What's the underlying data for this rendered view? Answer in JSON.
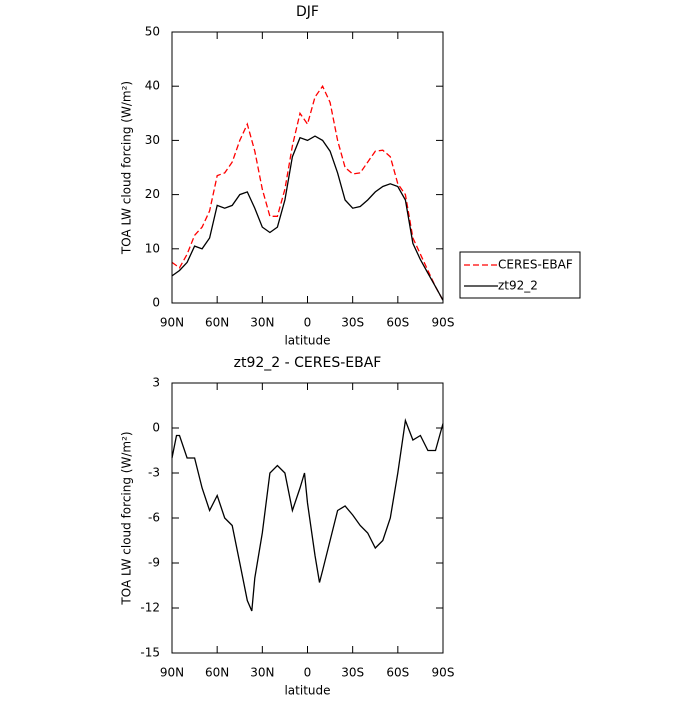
{
  "chart_data": [
    {
      "type": "line",
      "title": "DJF",
      "xlabel": "latitude",
      "ylabel": "TOA LW cloud forcing (W/m²)",
      "x": [
        90,
        85,
        80,
        75,
        70,
        65,
        60,
        55,
        50,
        45,
        40,
        35,
        30,
        25,
        20,
        15,
        10,
        5,
        0,
        -5,
        -10,
        -15,
        -20,
        -25,
        -30,
        -35,
        -40,
        -45,
        -50,
        -55,
        -60,
        -65,
        -70,
        -75,
        -80,
        -85,
        -90
      ],
      "series": [
        {
          "name": "CERES-EBAF",
          "color": "#ff0000",
          "dash": true,
          "values": [
            7.5,
            6.5,
            9,
            12.5,
            14,
            17,
            23.5,
            24,
            26,
            30,
            33,
            28,
            21,
            16,
            16,
            21,
            29,
            35,
            33,
            38,
            40,
            37,
            30,
            25,
            23.8,
            24,
            26,
            28,
            28.2,
            27,
            22,
            20,
            12,
            9,
            6,
            3,
            0.5
          ]
        },
        {
          "name": "zt92_2",
          "color": "#000000",
          "dash": false,
          "values": [
            5,
            6,
            7.5,
            10.5,
            10,
            12,
            18,
            17.5,
            18,
            20,
            20.5,
            17.5,
            14,
            13,
            14,
            19,
            27,
            30.5,
            30,
            30.8,
            30,
            28,
            24,
            19,
            17.5,
            17.8,
            19,
            20.5,
            21.5,
            22,
            21.5,
            19,
            11,
            8,
            5.5,
            3,
            0.5
          ]
        }
      ],
      "xlim": [
        90,
        -90
      ],
      "xticks": [
        {
          "value": 90,
          "label": "90N"
        },
        {
          "value": 60,
          "label": "60N"
        },
        {
          "value": 30,
          "label": "30N"
        },
        0,
        {
          "value": -30,
          "label": "30S"
        },
        {
          "value": -60,
          "label": "60S"
        },
        {
          "value": -90,
          "label": "90S"
        }
      ],
      "ylim": [
        0,
        50
      ],
      "yticks": [
        0,
        10,
        20,
        30,
        40,
        50
      ],
      "legend": "right"
    },
    {
      "type": "line",
      "title": "zt92_2 - CERES-EBAF",
      "xlabel": "latitude",
      "ylabel": "TOA LW cloud forcing (W/m²)",
      "x": [
        90,
        87,
        85,
        80,
        75,
        70,
        65,
        60,
        55,
        50,
        45,
        40,
        37,
        35,
        30,
        25,
        20,
        15,
        10,
        5,
        2,
        0,
        -5,
        -8,
        -10,
        -15,
        -20,
        -25,
        -30,
        -35,
        -40,
        -45,
        -50,
        -55,
        -60,
        -65,
        -70,
        -75,
        -80,
        -85,
        -90
      ],
      "series": [
        {
          "name": "zt92_2 - CERES-EBAF",
          "color": "#000000",
          "dash": false,
          "values": [
            -2,
            -0.5,
            -0.5,
            -2,
            -2,
            -4,
            -5.5,
            -4.5,
            -6,
            -6.5,
            -9,
            -11.5,
            -12.2,
            -10,
            -7,
            -3,
            -2.5,
            -3,
            -5.5,
            -4,
            -3,
            -5,
            -8.5,
            -10.3,
            -9.5,
            -7.5,
            -5.5,
            -5.2,
            -5.8,
            -6.5,
            -7,
            -8,
            -7.5,
            -6,
            -3,
            0.5,
            -0.8,
            -0.5,
            -1.5,
            -1.5,
            0.3
          ]
        }
      ],
      "xlim": [
        90,
        -90
      ],
      "xticks": [
        {
          "value": 90,
          "label": "90N"
        },
        {
          "value": 60,
          "label": "60N"
        },
        {
          "value": 30,
          "label": "30N"
        },
        0,
        {
          "value": -30,
          "label": "30S"
        },
        {
          "value": -60,
          "label": "60S"
        },
        {
          "value": -90,
          "label": "90S"
        }
      ],
      "ylim": [
        -15,
        3
      ],
      "yticks": [
        -15,
        -12,
        -9,
        -6,
        -3,
        0,
        3
      ]
    }
  ]
}
